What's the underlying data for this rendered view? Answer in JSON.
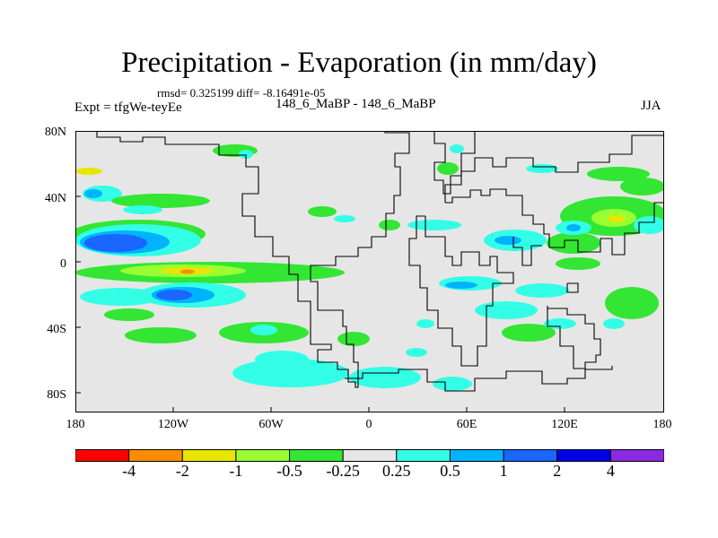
{
  "figure": {
    "title": "Precipitation - Evaporation (in mm/day)",
    "stats": "rmsd= 0.325199 diff= -8.16491e-05",
    "experiment": "Expt = tfgWe-teyEe",
    "case": "148_6_MaBP - 148_6_MaBP",
    "season": "JJA"
  },
  "axes": {
    "lat_ticks": [
      "80N",
      "40N",
      "0",
      "40S",
      "80S"
    ],
    "lon_ticks": [
      "180",
      "120W",
      "60W",
      "0",
      "60E",
      "120E",
      "180"
    ]
  },
  "colorbar": {
    "colors": [
      "#ff0000",
      "#ff8c00",
      "#e6e600",
      "#99ff33",
      "#33e633",
      "#e6e6e6",
      "#33ffe6",
      "#00b3ff",
      "#1a66ff",
      "#0000e6",
      "#8a2be2"
    ],
    "labels": [
      "-4",
      "-2",
      "-1",
      "-0.5",
      "-0.25",
      "0.25",
      "0.5",
      "1",
      "2",
      "4"
    ]
  },
  "map_colors": {
    "background": "#e6e6e6",
    "outline": "#000000"
  }
}
